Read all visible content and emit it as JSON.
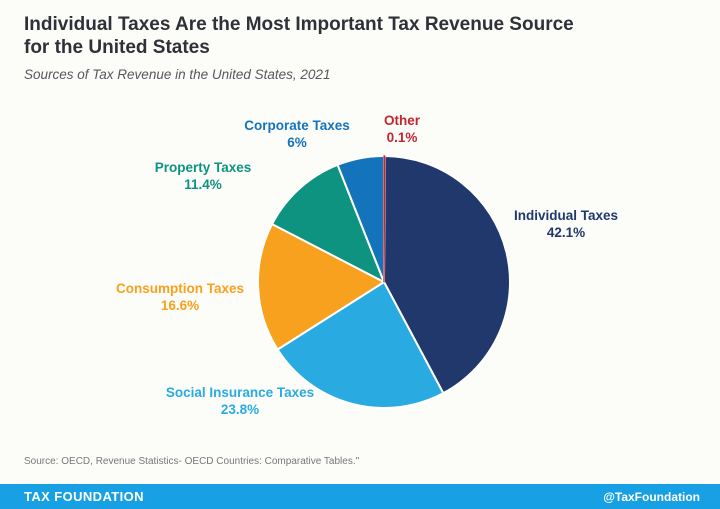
{
  "header": {
    "title": "Individual Taxes Are the Most Important Tax Revenue Source for the United States",
    "title_line1": "Individual Taxes Are the Most Important Tax Revenue Source",
    "title_line2": "for the United States",
    "subtitle": "Sources of Tax Revenue in the United States, 2021"
  },
  "chart_data": {
    "type": "pie",
    "title": "Sources of Tax Revenue in the United States, 2021",
    "start_angle_deg": 0,
    "direction": "clockwise",
    "units": "percent",
    "total": 100,
    "slices": [
      {
        "label": "Other",
        "value": 0.1,
        "display": "0.1%",
        "color": "#C1272D"
      },
      {
        "label": "Individual Taxes",
        "value": 42.1,
        "display": "42.1%",
        "color": "#20386B"
      },
      {
        "label": "Social Insurance Taxes",
        "value": 23.8,
        "display": "23.8%",
        "color": "#29ABE2"
      },
      {
        "label": "Consumption Taxes",
        "value": 16.6,
        "display": "16.6%",
        "color": "#F7A11E"
      },
      {
        "label": "Property Taxes",
        "value": 11.4,
        "display": "11.4%",
        "color": "#0E9380"
      },
      {
        "label": "Corporate Taxes",
        "value": 6,
        "display": "6%",
        "color": "#1373BB"
      }
    ],
    "slice_border_color": "#FFFFFF"
  },
  "source_note": "Source: OECD, Revenue Statistics- OECD Countries: Comparative Tables.\"",
  "footer": {
    "brand": "TAX FOUNDATION",
    "handle": "@TaxFoundation",
    "bar_color": "#18A0E4"
  }
}
